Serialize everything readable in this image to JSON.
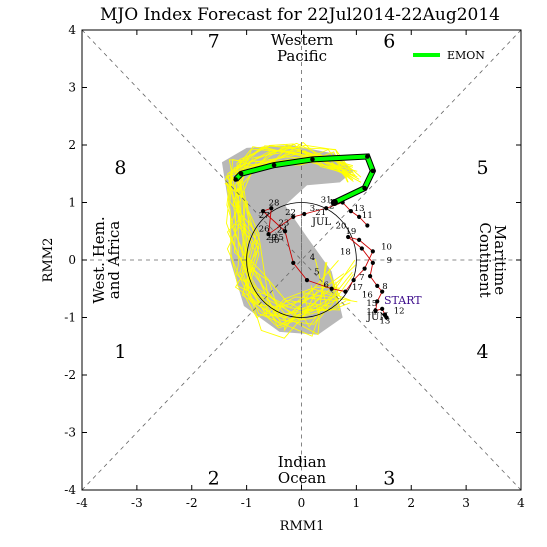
{
  "chart_data": {
    "type": "scatter",
    "title": "MJO Index Forecast for 22Jul2014-22Aug2014",
    "xlabel": "RMM1",
    "ylabel": "RMM2",
    "xlim": [
      -4,
      4
    ],
    "ylim": [
      -4,
      4
    ],
    "xticks": [
      "-4",
      "-3",
      "-2",
      "-1",
      "0",
      "1",
      "2",
      "3",
      "4"
    ],
    "yticks": [
      "-4",
      "-3",
      "-2",
      "-1",
      "0",
      "1",
      "2",
      "3",
      "4"
    ],
    "grid": "dashed phase-boundary diagonals and axes",
    "phases": [
      {
        "num": "1",
        "x": -3.3,
        "y": -1.6
      },
      {
        "num": "2",
        "x": -1.6,
        "y": -3.8
      },
      {
        "num": "3",
        "x": 1.6,
        "y": -3.8
      },
      {
        "num": "4",
        "x": 3.3,
        "y": -1.6
      },
      {
        "num": "5",
        "x": 3.3,
        "y": 1.6
      },
      {
        "num": "6",
        "x": 1.6,
        "y": 3.8
      },
      {
        "num": "7",
        "x": -1.6,
        "y": 3.8
      },
      {
        "num": "8",
        "x": -3.3,
        "y": 1.6
      }
    ],
    "regions": {
      "top": [
        "Western",
        "Pacific"
      ],
      "bottom": [
        "Indian",
        "Ocean"
      ],
      "left": [
        "West. Hem.",
        "and Africa"
      ],
      "right": [
        "Maritime",
        "Continent"
      ]
    },
    "legend": {
      "label": "EMON",
      "color": "#00ff00",
      "placement": "top-right"
    },
    "amplitude_circle_radius": 1,
    "observed_track": {
      "name": "observed",
      "color": "#cc0000",
      "x": [
        1.55,
        1.52,
        1.47,
        1.35,
        1.38,
        1.47,
        1.38,
        1.25,
        1.3,
        1.1,
        0.85,
        1.05,
        1.3,
        1.15,
        0.95,
        0.8,
        0.55,
        0.1,
        -0.15,
        -0.3,
        -0.7,
        -0.55,
        -0.6,
        -0.15,
        0.05,
        0.45,
        0.75,
        0.9,
        1.05,
        1.2
      ],
      "y": [
        -1.0,
        -0.95,
        -0.85,
        -0.88,
        -0.72,
        -0.55,
        -0.45,
        -0.28,
        -0.05,
        0.2,
        0.4,
        0.35,
        0.15,
        -0.15,
        -0.35,
        -0.55,
        -0.5,
        -0.35,
        -0.05,
        0.5,
        0.85,
        0.9,
        0.45,
        0.75,
        0.8,
        0.9,
        1.0,
        0.85,
        0.75,
        0.6
      ]
    },
    "start_label": "START",
    "month_labels": [
      "JUN",
      "JUL"
    ],
    "day_labels": [
      {
        "t": "12",
        "x": 1.78,
        "y": -0.93
      },
      {
        "t": "13",
        "x": 1.52,
        "y": -1.1
      },
      {
        "t": "14",
        "x": 1.28,
        "y": -0.95
      },
      {
        "t": "15",
        "x": 1.28,
        "y": -0.8
      },
      {
        "t": "16",
        "x": 1.2,
        "y": -0.65
      },
      {
        "t": "17",
        "x": 1.02,
        "y": -0.52
      },
      {
        "t": "8",
        "x": 1.52,
        "y": -0.5
      },
      {
        "t": "9",
        "x": 1.6,
        "y": -0.05
      },
      {
        "t": "10",
        "x": 1.55,
        "y": 0.18
      },
      {
        "t": "18",
        "x": 0.8,
        "y": 0.1
      },
      {
        "t": "19",
        "x": 0.9,
        "y": 0.45
      },
      {
        "t": "20",
        "x": 0.72,
        "y": 0.55
      },
      {
        "t": "11",
        "x": 1.2,
        "y": 0.73
      },
      {
        "t": "13",
        "x": 1.05,
        "y": 0.85
      },
      {
        "t": "21",
        "x": 0.35,
        "y": 0.78
      },
      {
        "t": "22",
        "x": -0.2,
        "y": 0.78
      },
      {
        "t": "23",
        "x": -0.32,
        "y": 0.6
      },
      {
        "t": "24",
        "x": -0.35,
        "y": 0.48
      },
      {
        "t": "25",
        "x": -0.42,
        "y": 0.35
      },
      {
        "t": "26",
        "x": -0.68,
        "y": 0.5
      },
      {
        "t": "27",
        "x": -0.68,
        "y": 0.73
      },
      {
        "t": "28",
        "x": -0.5,
        "y": 0.95
      },
      {
        "t": "29",
        "x": -0.55,
        "y": 0.35
      },
      {
        "t": "30",
        "x": -0.5,
        "y": 0.3
      },
      {
        "t": "31",
        "x": 0.45,
        "y": 1.0
      },
      {
        "t": "1",
        "x": 0.55,
        "y": 0.95
      },
      {
        "t": "2",
        "x": 0.55,
        "y": 0.9
      },
      {
        "t": "3",
        "x": 0.2,
        "y": 0.85
      },
      {
        "t": "4",
        "x": 0.2,
        "y": 0.0
      },
      {
        "t": "5",
        "x": 0.28,
        "y": -0.25
      },
      {
        "t": "6",
        "x": 0.45,
        "y": -0.48
      },
      {
        "t": "7",
        "x": 1.1,
        "y": -0.35
      }
    ],
    "ensemble_mean": {
      "name": "EMON",
      "color": "#00ff00",
      "x": [
        0.6,
        1.15,
        1.3,
        1.2,
        0.2,
        -0.5,
        -1.1,
        -1.2
      ],
      "y": [
        1.0,
        1.25,
        1.55,
        1.8,
        1.75,
        1.65,
        1.5,
        1.4
      ]
    }
  }
}
